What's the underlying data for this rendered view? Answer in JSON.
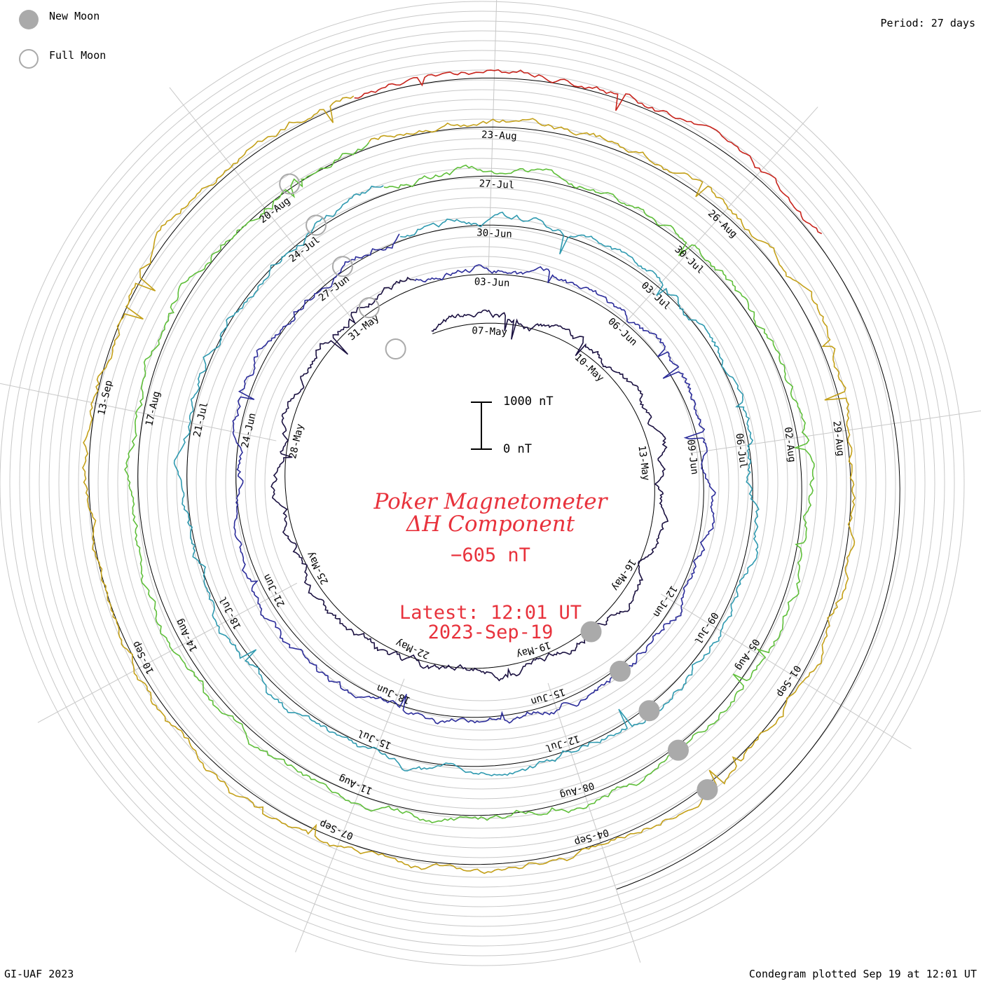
{
  "legend": {
    "new_moon": {
      "label": "New Moon",
      "color": "#aaaaaa"
    },
    "full_moon": {
      "label": "Full Moon",
      "color": "#aaaaaa"
    }
  },
  "period_label": "Period: 27 days",
  "footer": {
    "left": "GI-UAF 2023",
    "right": "Condegram plotted Sep 19 at 12:01 UT"
  },
  "title": {
    "line1": "Poker Magnetometer",
    "line2": "ΔH Component",
    "value": "−605 nT",
    "latest_line1": "Latest: 12:01 UT",
    "latest_line2": "2023-Sep-19",
    "color": "#e8323c"
  },
  "scale_bar": {
    "top_label": "1000 nT",
    "bottom_label": "0 nT"
  },
  "chart_data": {
    "type": "line",
    "polar_spiral": true,
    "period_days": 27,
    "rings": [
      {
        "name": "",
        "color": "#1a1040",
        "date_labels": [
          "07-May",
          "10-May",
          "13-May",
          "16-May",
          "19-May",
          "22-May",
          "25-May",
          "28-May",
          "31-May"
        ]
      },
      {
        "name": "",
        "color": "#2b2c9a",
        "date_labels": [
          "03-Jun",
          "06-Jun",
          "09-Jun",
          "12-Jun",
          "15-Jun",
          "18-Jun",
          "21-Jun",
          "24-Jun",
          "27-Jun"
        ]
      },
      {
        "name": "",
        "color": "#2f9ab0",
        "date_labels": [
          "30-Jun",
          "03-Jul",
          "06-Jul",
          "09-Jul",
          "12-Jul",
          "15-Jul",
          "18-Jul",
          "21-Jul",
          "24-Jul"
        ]
      },
      {
        "name": "",
        "color": "#5fbf3a",
        "date_labels": [
          "27-Jul",
          "30-Jul",
          "02-Aug",
          "05-Aug",
          "08-Aug",
          "11-Aug",
          "14-Aug",
          "17-Aug",
          "20-Aug"
        ]
      },
      {
        "name": "",
        "color": "#c4a018",
        "date_labels": [
          "23-Aug",
          "26-Aug",
          "29-Aug",
          "01-Sep",
          "04-Sep",
          "07-Sep",
          "10-Sep",
          "13-Sep"
        ]
      },
      {
        "name": "",
        "color": "#c8241c",
        "date_labels": []
      }
    ],
    "new_moons": [
      "19-May",
      "18-Jun",
      "17-Jul",
      "16-Aug",
      "15-Sep"
    ],
    "full_moons": [
      "05-May",
      "04-Jun",
      "03-Jul",
      "01-Aug",
      "31-Aug"
    ],
    "y_unit": "nT",
    "scale_range": [
      0,
      1000
    ],
    "latest_value": -605
  }
}
